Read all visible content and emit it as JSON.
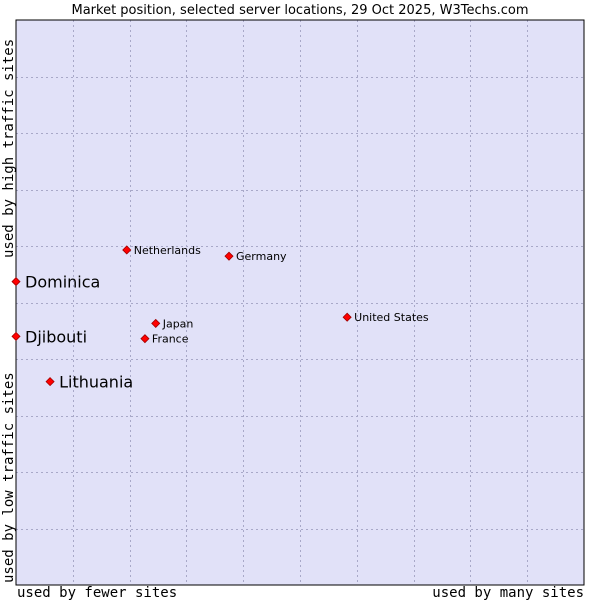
{
  "chart_data": {
    "type": "scatter",
    "title": "Market position, selected server locations, 29 Oct 2025, W3Techs.com",
    "xlabel_left": "used by fewer sites",
    "xlabel_right": "used by many sites",
    "ylabel_bottom": "used by low traffic sites",
    "ylabel_top": "used by high traffic sites",
    "xlim": [
      0,
      100
    ],
    "ylim": [
      0,
      100
    ],
    "grid": true,
    "points": [
      {
        "label": "Netherlands",
        "x": 19.5,
        "y": 59.3,
        "highlight": false
      },
      {
        "label": "Germany",
        "x": 37.5,
        "y": 58.2,
        "highlight": false
      },
      {
        "label": "Dominica",
        "x": 0.0,
        "y": 53.7,
        "highlight": true
      },
      {
        "label": "United States",
        "x": 58.3,
        "y": 47.4,
        "highlight": false
      },
      {
        "label": "Japan",
        "x": 24.6,
        "y": 46.3,
        "highlight": false
      },
      {
        "label": "France",
        "x": 22.7,
        "y": 43.6,
        "highlight": false
      },
      {
        "label": "Djibouti",
        "x": 0.0,
        "y": 44.0,
        "highlight": true
      },
      {
        "label": "Lithuania",
        "x": 6.0,
        "y": 36.0,
        "highlight": true
      }
    ],
    "colors": {
      "plot_background": "#e1e1f8",
      "grid": "#a8a8c8",
      "point": "#ff0000",
      "point_outline": "#a00000",
      "frame": "#000000"
    }
  }
}
